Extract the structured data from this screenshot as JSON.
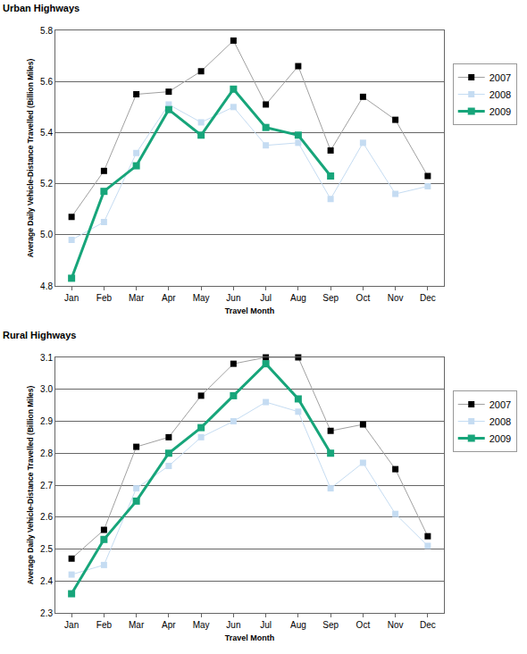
{
  "chart_data": [
    {
      "type": "line",
      "title": "Urban Highways",
      "x_label": "Travel Month",
      "y_label": "Average Daily Vehicle-Distance Travelled (Billion Miles)",
      "categories": [
        "Jan",
        "Feb",
        "Mar",
        "Apr",
        "May",
        "Jun",
        "Jul",
        "Aug",
        "Sep",
        "Oct",
        "Nov",
        "Dec"
      ],
      "series": [
        {
          "name": "2007",
          "color": "#000000",
          "marker": "square",
          "line_style": "thin",
          "values": [
            5.07,
            5.25,
            5.55,
            5.56,
            5.64,
            5.76,
            5.51,
            5.66,
            5.33,
            5.54,
            5.45,
            5.23
          ]
        },
        {
          "name": "2008",
          "color": "#c5dcf2",
          "marker": "square",
          "line_style": "thin",
          "values": [
            4.98,
            5.05,
            5.32,
            5.51,
            5.44,
            5.5,
            5.35,
            5.36,
            5.14,
            5.36,
            5.16,
            5.19
          ]
        },
        {
          "name": "2009",
          "color": "#17a57a",
          "marker": "square",
          "line_style": "thick",
          "values": [
            4.83,
            5.17,
            5.27,
            5.49,
            5.39,
            5.57,
            5.42,
            5.39,
            5.23,
            null,
            null,
            null
          ]
        }
      ],
      "ylim": [
        4.8,
        5.8
      ],
      "yticks": [
        4.8,
        {
          "value": 5,
          "label": "5.0"
        },
        5.2,
        5.4,
        5.6,
        5.8
      ],
      "grid": true,
      "legend": "right"
    },
    {
      "type": "line",
      "title": "Rural Highways",
      "x_label": "Travel Month",
      "y_label": "Average Daily Vehicle-Distance Travelled (Billion Miles)",
      "categories": [
        "Jan",
        "Feb",
        "Mar",
        "Apr",
        "May",
        "Jun",
        "Jul",
        "Aug",
        "Sep",
        "Oct",
        "Nov",
        "Dec"
      ],
      "series": [
        {
          "name": "2007",
          "color": "#000000",
          "marker": "square",
          "line_style": "thin",
          "values": [
            2.47,
            2.56,
            2.82,
            2.85,
            2.98,
            3.08,
            3.1,
            3.1,
            2.87,
            2.89,
            2.75,
            2.54
          ]
        },
        {
          "name": "2008",
          "color": "#c5dcf2",
          "marker": "square",
          "line_style": "thin",
          "values": [
            2.42,
            2.45,
            2.69,
            2.76,
            2.85,
            2.9,
            2.96,
            2.93,
            2.69,
            2.77,
            2.61,
            2.51
          ]
        },
        {
          "name": "2009",
          "color": "#17a57a",
          "marker": "square",
          "line_style": "thick",
          "values": [
            2.36,
            2.53,
            2.65,
            2.8,
            2.88,
            2.98,
            3.08,
            2.97,
            2.8,
            null,
            null,
            null
          ]
        }
      ],
      "ylim": [
        2.3,
        3.1
      ],
      "yticks": [
        2.3,
        2.4,
        2.5,
        2.6,
        2.7,
        2.8,
        2.9,
        {
          "value": 3,
          "label": "3.0"
        },
        3.1
      ],
      "grid": true,
      "legend": "right"
    }
  ]
}
